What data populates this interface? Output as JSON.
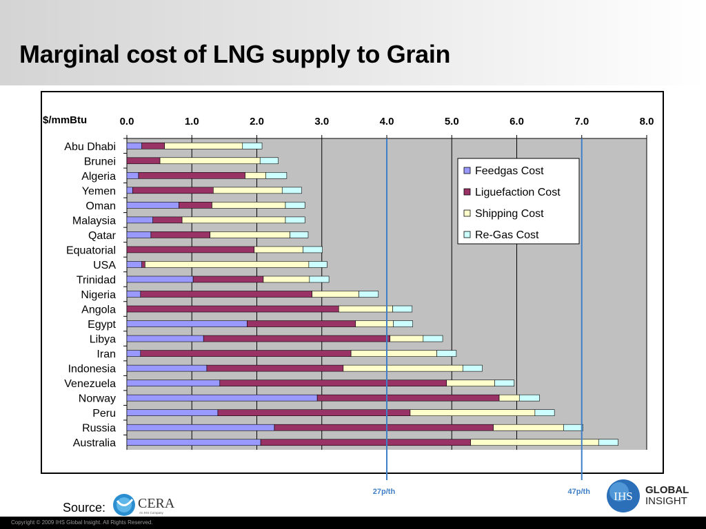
{
  "slide": {
    "title": "Marginal cost of LNG supply to Grain",
    "source_label": "Source:",
    "copyright": "Copyright © 2009 IHS Global Insight. All Rights Reserved."
  },
  "logos": {
    "cera": "CERA",
    "cera_sub": "An IHS Company",
    "ihs": "IHS",
    "global_insight_line1": "GLOBAL",
    "global_insight_line2": "INSIGHT"
  },
  "chart_data": {
    "type": "bar",
    "orientation": "horizontal",
    "stacked": true,
    "unit_label": "$/mmBtu",
    "xlim": [
      0,
      8
    ],
    "x_ticks": [
      "0.0",
      "1.0",
      "2.0",
      "3.0",
      "4.0",
      "5.0",
      "6.0",
      "7.0",
      "8.0"
    ],
    "grid": true,
    "legend_position": "top-right",
    "categories": [
      "Abu Dhabi",
      "Brunei",
      "Algeria",
      "Yemen",
      "Oman",
      "Malaysia",
      "Qatar",
      "Equatorial",
      "USA",
      "Trinidad",
      "Nigeria",
      "Angola",
      "Egypt",
      "Libya",
      "Iran",
      "Indonesia",
      "Venezuela",
      "Norway",
      "Peru",
      "Russia",
      "Australia"
    ],
    "series": [
      {
        "name": "Feedgas Cost",
        "color": "#9999ff",
        "values": [
          0.23,
          0.0,
          0.18,
          0.09,
          0.8,
          0.4,
          0.37,
          0.0,
          0.23,
          1.02,
          0.21,
          0.0,
          1.85,
          1.18,
          0.21,
          1.23,
          1.43,
          2.93,
          1.4,
          2.27,
          2.06
        ]
      },
      {
        "name": "Liguefaction Cost",
        "color": "#993366",
        "values": [
          0.35,
          0.51,
          1.64,
          1.24,
          0.51,
          0.45,
          0.91,
          1.96,
          0.05,
          1.08,
          2.64,
          3.26,
          1.67,
          2.87,
          3.24,
          2.1,
          3.49,
          2.8,
          2.96,
          3.37,
          3.23
        ]
      },
      {
        "name": "Shipping Cost",
        "color": "#ffffcc",
        "values": [
          1.2,
          1.54,
          0.32,
          1.06,
          1.13,
          1.59,
          1.23,
          0.75,
          2.52,
          0.71,
          0.72,
          0.83,
          0.58,
          0.51,
          1.32,
          1.84,
          0.74,
          0.31,
          1.92,
          1.08,
          1.97
        ]
      },
      {
        "name": "Re-Gas Cost",
        "color": "#ccffff",
        "values": [
          0.3,
          0.28,
          0.32,
          0.3,
          0.3,
          0.3,
          0.28,
          0.3,
          0.28,
          0.3,
          0.3,
          0.3,
          0.3,
          0.3,
          0.3,
          0.3,
          0.3,
          0.31,
          0.3,
          0.3,
          0.3
        ]
      }
    ],
    "reference_lines": [
      {
        "value": 4.0,
        "label": "27p/th",
        "color": "#3f7fc8"
      },
      {
        "value": 7.0,
        "label": "47p/th",
        "color": "#3f7fc8"
      }
    ]
  }
}
